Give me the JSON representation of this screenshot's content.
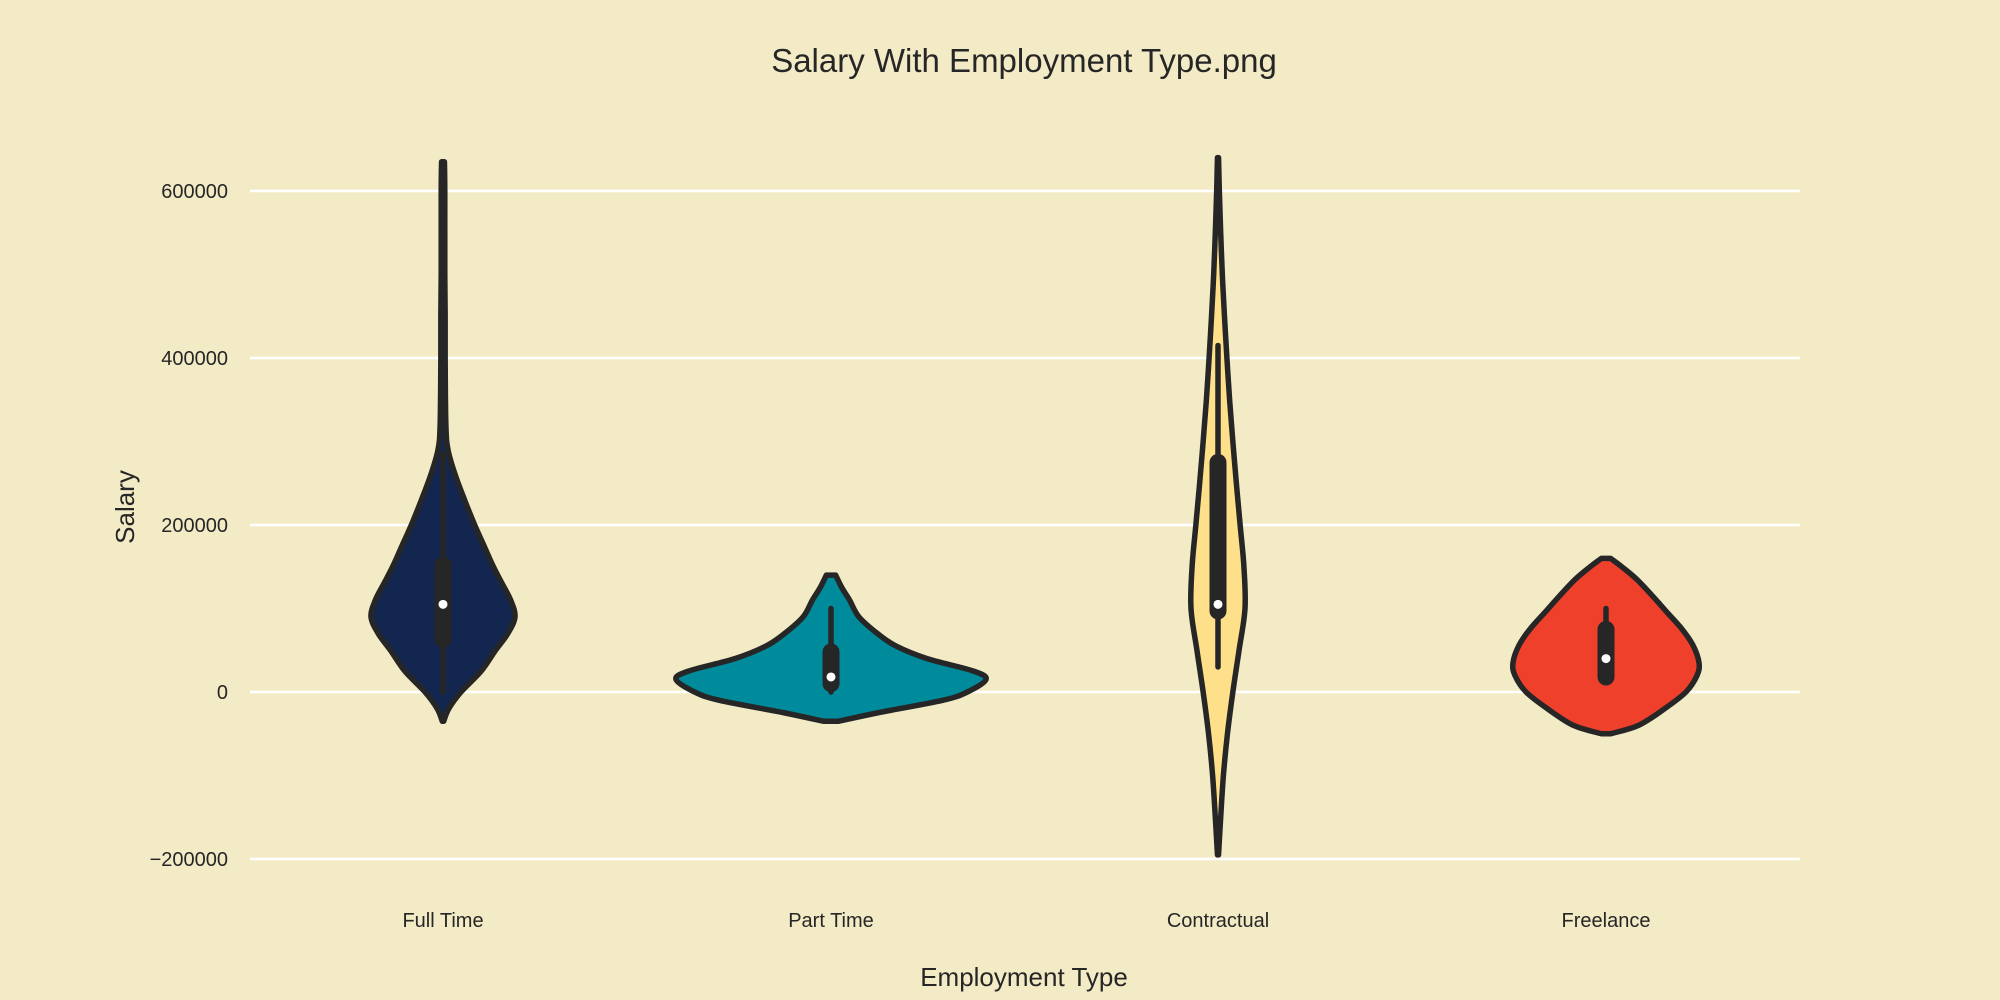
{
  "chart_data": {
    "type": "violin",
    "title": "Salary With Employment Type.png",
    "xlabel": "Employment Type",
    "ylabel": "Salary",
    "categories": [
      "Full Time",
      "Part Time",
      "Contractual",
      "Freelance"
    ],
    "ylim": [
      -210000,
      690000
    ],
    "yticks": [
      -200000,
      0,
      200000,
      400000,
      600000
    ],
    "ytick_labels": [
      "−200000",
      "0",
      "200000",
      "400000",
      "600000"
    ],
    "grid": "horizontal",
    "colors": [
      "#12264f",
      "#008b9c",
      "#ffe08a",
      "#ef402b"
    ],
    "background": "#f3ebc6",
    "series": [
      {
        "category": "Full Time",
        "range": [
          -35000,
          635000
        ],
        "median": 105000,
        "q1": 63000,
        "q3": 152000,
        "whisker_low": 0,
        "whisker_high": 285000,
        "density": [
          [
            -35000,
            0.01
          ],
          [
            -20000,
            0.08
          ],
          [
            0,
            0.25
          ],
          [
            25000,
            0.53
          ],
          [
            50000,
            0.73
          ],
          [
            70000,
            0.9
          ],
          [
            90000,
            1.0
          ],
          [
            110000,
            0.94
          ],
          [
            130000,
            0.82
          ],
          [
            150000,
            0.7
          ],
          [
            175000,
            0.57
          ],
          [
            200000,
            0.44
          ],
          [
            230000,
            0.3
          ],
          [
            260000,
            0.17
          ],
          [
            290000,
            0.07
          ],
          [
            320000,
            0.04
          ],
          [
            400000,
            0.03
          ],
          [
            450000,
            0.03
          ],
          [
            500000,
            0.025
          ],
          [
            600000,
            0.025
          ],
          [
            635000,
            0.02
          ]
        ]
      },
      {
        "category": "Part Time",
        "range": [
          -35000,
          140000
        ],
        "median": 18000,
        "q1": 10000,
        "q3": 48000,
        "whisker_low": 0,
        "whisker_high": 100000,
        "density": [
          [
            -35000,
            0.05
          ],
          [
            -25000,
            0.3
          ],
          [
            -10000,
            0.72
          ],
          [
            0,
            0.88
          ],
          [
            15000,
            1.0
          ],
          [
            25000,
            0.92
          ],
          [
            40000,
            0.62
          ],
          [
            55000,
            0.42
          ],
          [
            70000,
            0.3
          ],
          [
            90000,
            0.18
          ],
          [
            110000,
            0.12
          ],
          [
            125000,
            0.07
          ],
          [
            140000,
            0.03
          ]
        ]
      },
      {
        "category": "Contractual",
        "range": [
          -195000,
          640000
        ],
        "median": 105000,
        "q1": 97000,
        "q3": 275000,
        "whisker_low": 30000,
        "whisker_high": 415000,
        "density": [
          [
            -195000,
            0.02
          ],
          [
            -150000,
            0.1
          ],
          [
            -100000,
            0.2
          ],
          [
            -50000,
            0.35
          ],
          [
            0,
            0.55
          ],
          [
            50000,
            0.78
          ],
          [
            100000,
            1.0
          ],
          [
            150000,
            0.96
          ],
          [
            200000,
            0.82
          ],
          [
            250000,
            0.68
          ],
          [
            300000,
            0.55
          ],
          [
            350000,
            0.43
          ],
          [
            400000,
            0.33
          ],
          [
            450000,
            0.24
          ],
          [
            500000,
            0.16
          ],
          [
            550000,
            0.1
          ],
          [
            600000,
            0.05
          ],
          [
            640000,
            0.02
          ]
        ]
      },
      {
        "category": "Freelance",
        "range": [
          -50000,
          160000
        ],
        "median": 40000,
        "q1": 18000,
        "q3": 75000,
        "whisker_low": 18000,
        "whisker_high": 100000,
        "density": [
          [
            -50000,
            0.05
          ],
          [
            -40000,
            0.35
          ],
          [
            -20000,
            0.63
          ],
          [
            0,
            0.86
          ],
          [
            20000,
            0.98
          ],
          [
            35000,
            1.0
          ],
          [
            55000,
            0.94
          ],
          [
            75000,
            0.82
          ],
          [
            95000,
            0.66
          ],
          [
            115000,
            0.5
          ],
          [
            135000,
            0.33
          ],
          [
            150000,
            0.17
          ],
          [
            160000,
            0.05
          ]
        ]
      }
    ]
  }
}
